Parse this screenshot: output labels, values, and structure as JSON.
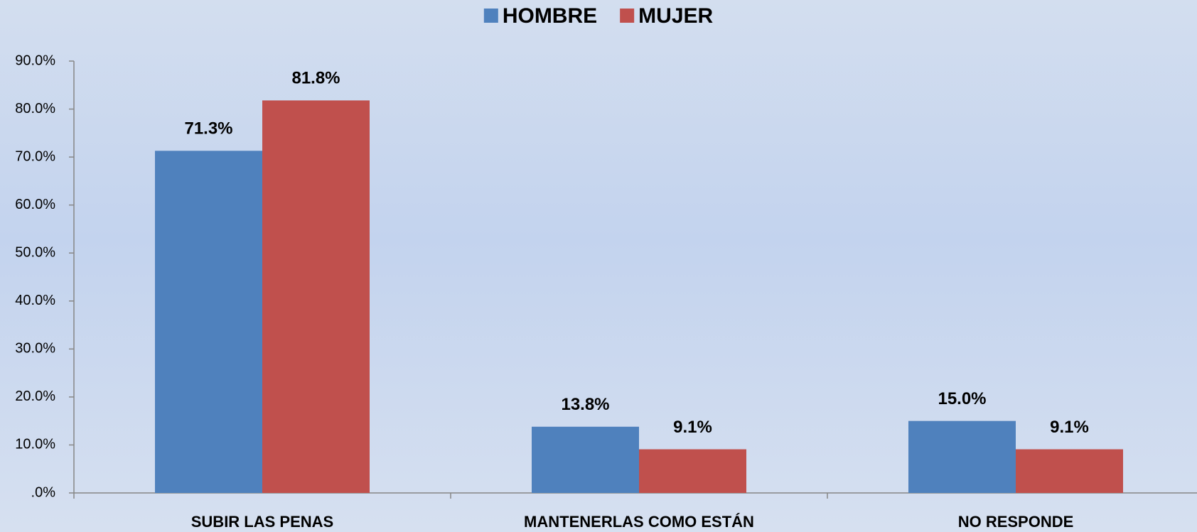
{
  "chart_data": {
    "type": "bar",
    "categories": [
      "SUBIR LAS PENAS",
      "MANTENERLAS COMO ESTÁN",
      "NO RESPONDE"
    ],
    "series": [
      {
        "name": "HOMBRE",
        "color": "#4f81bd",
        "values": [
          71.3,
          13.8,
          15.0
        ],
        "value_labels": [
          "71.3%",
          "13.8%",
          "15.0%"
        ]
      },
      {
        "name": "MUJER",
        "color": "#c0504d",
        "values": [
          81.8,
          9.1,
          9.1
        ],
        "value_labels": [
          "81.8%",
          "9.1%",
          "9.1%"
        ]
      }
    ],
    "ylim": [
      0,
      90
    ],
    "yticks": [
      {
        "value": 0,
        "label": ".0%"
      },
      {
        "value": 10,
        "label": "10.0%"
      },
      {
        "value": 20,
        "label": "20.0%"
      },
      {
        "value": 30,
        "label": "30.0%"
      },
      {
        "value": 40,
        "label": "40.0%"
      },
      {
        "value": 50,
        "label": "50.0%"
      },
      {
        "value": 60,
        "label": "60.0%"
      },
      {
        "value": 70,
        "label": "70.0%"
      },
      {
        "value": 80,
        "label": "80.0%"
      },
      {
        "value": 90,
        "label": "90.0%"
      }
    ],
    "grid": false,
    "legend": "top"
  }
}
